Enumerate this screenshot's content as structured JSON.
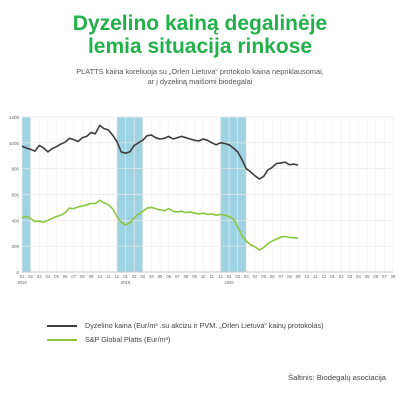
{
  "page": {
    "title_line1": "Dyzelino kainą degalinėje",
    "title_line2": "lemia situacija rinkose",
    "subtitle_line1": "PLATTS kaina koreliuoja su „Orlen Lietuva“ protokolo kaina nepriklausomai,",
    "subtitle_line2": "ar į dyzeliną maišomi biodegalai",
    "source": "Šaltinis: Biodegalų asociacija"
  },
  "chart_data": {
    "type": "line",
    "y_ticks": [
      0,
      200,
      400,
      600,
      800,
      1000,
      1200
    ],
    "ylim": [
      0,
      1200
    ],
    "x_month_labels": [
      "01",
      "02",
      "03",
      "04",
      "05",
      "06",
      "07",
      "08",
      "09",
      "10",
      "11",
      "12",
      "01",
      "02",
      "03",
      "04",
      "05",
      "06",
      "07",
      "08",
      "09",
      "10",
      "11",
      "12",
      "01",
      "02",
      "03",
      "04",
      "05",
      "06",
      "07",
      "08",
      "09",
      "10",
      "11",
      "12",
      "01",
      "02",
      "03",
      "04",
      "05",
      "06",
      "07",
      "08"
    ],
    "x_year_labels": [
      {
        "month_index": 0,
        "label": "2018"
      },
      {
        "month_index": 12,
        "label": "2019"
      },
      {
        "month_index": 24,
        "label": "2020"
      }
    ],
    "shaded_periods": [
      [
        0,
        1
      ],
      [
        11,
        14
      ],
      [
        23,
        26
      ]
    ],
    "shade_color": "#9fd3e2",
    "grid": true,
    "series": [
      {
        "name": "Dyzelino kaina (Eur/m³ .su akcizu ir PVM. „Orlen Lietuva“ kainų protokolas)",
        "color": "#3d3d3d",
        "points": [
          [
            0,
            975
          ],
          [
            0.5,
            960
          ],
          [
            1,
            950
          ],
          [
            1.5,
            935
          ],
          [
            2,
            980
          ],
          [
            2.5,
            960
          ],
          [
            3,
            930
          ],
          [
            3.5,
            955
          ],
          [
            4,
            970
          ],
          [
            4.5,
            990
          ],
          [
            5,
            1005
          ],
          [
            5.5,
            1035
          ],
          [
            6,
            1025
          ],
          [
            6.5,
            1010
          ],
          [
            7,
            1040
          ],
          [
            7.5,
            1050
          ],
          [
            8,
            1080
          ],
          [
            8.5,
            1070
          ],
          [
            9,
            1135
          ],
          [
            9.5,
            1110
          ],
          [
            10,
            1100
          ],
          [
            10.5,
            1060
          ],
          [
            11,
            1010
          ],
          [
            11.5,
            930
          ],
          [
            12,
            920
          ],
          [
            12.5,
            930
          ],
          [
            13,
            980
          ],
          [
            13.5,
            1000
          ],
          [
            14,
            1020
          ],
          [
            14.5,
            1055
          ],
          [
            15,
            1060
          ],
          [
            15.5,
            1040
          ],
          [
            16,
            1030
          ],
          [
            16.5,
            1035
          ],
          [
            17,
            1050
          ],
          [
            17.5,
            1030
          ],
          [
            18,
            1040
          ],
          [
            18.5,
            1050
          ],
          [
            19,
            1040
          ],
          [
            19.5,
            1030
          ],
          [
            20,
            1020
          ],
          [
            20.5,
            1015
          ],
          [
            21,
            1030
          ],
          [
            21.5,
            1020
          ],
          [
            22,
            1000
          ],
          [
            22.5,
            985
          ],
          [
            23,
            1000
          ],
          [
            23.5,
            995
          ],
          [
            24,
            985
          ],
          [
            24.5,
            960
          ],
          [
            25,
            930
          ],
          [
            25.5,
            870
          ],
          [
            26,
            800
          ],
          [
            26.5,
            775
          ],
          [
            27,
            745
          ],
          [
            27.5,
            720
          ],
          [
            28,
            740
          ],
          [
            28.5,
            790
          ],
          [
            29,
            810
          ],
          [
            29.5,
            840
          ],
          [
            30,
            845
          ],
          [
            30.5,
            850
          ],
          [
            31,
            830
          ],
          [
            31.5,
            835
          ],
          [
            32,
            828
          ]
        ]
      },
      {
        "name": "S&P Global Platts (Eur/m³)",
        "color": "#8cc63f",
        "points": [
          [
            0,
            420
          ],
          [
            0.5,
            430
          ],
          [
            1,
            415
          ],
          [
            1.5,
            390
          ],
          [
            2,
            395
          ],
          [
            2.5,
            385
          ],
          [
            3,
            400
          ],
          [
            3.5,
            415
          ],
          [
            4,
            430
          ],
          [
            4.5,
            440
          ],
          [
            5,
            460
          ],
          [
            5.5,
            495
          ],
          [
            6,
            490
          ],
          [
            6.5,
            505
          ],
          [
            7,
            510
          ],
          [
            7.5,
            520
          ],
          [
            8,
            530
          ],
          [
            8.5,
            530
          ],
          [
            9,
            555
          ],
          [
            9.5,
            535
          ],
          [
            10,
            520
          ],
          [
            10.5,
            490
          ],
          [
            11,
            430
          ],
          [
            11.5,
            385
          ],
          [
            12,
            365
          ],
          [
            12.5,
            380
          ],
          [
            13,
            420
          ],
          [
            13.5,
            450
          ],
          [
            14,
            470
          ],
          [
            14.5,
            495
          ],
          [
            15,
            500
          ],
          [
            15.5,
            490
          ],
          [
            16,
            480
          ],
          [
            16.5,
            475
          ],
          [
            17,
            490
          ],
          [
            17.5,
            470
          ],
          [
            18,
            465
          ],
          [
            18.5,
            470
          ],
          [
            19,
            460
          ],
          [
            19.5,
            465
          ],
          [
            20,
            455
          ],
          [
            20.5,
            450
          ],
          [
            21,
            455
          ],
          [
            21.5,
            445
          ],
          [
            22,
            450
          ],
          [
            22.5,
            440
          ],
          [
            23,
            445
          ],
          [
            23.5,
            440
          ],
          [
            24,
            430
          ],
          [
            24.5,
            410
          ],
          [
            25,
            350
          ],
          [
            25.5,
            280
          ],
          [
            26,
            240
          ],
          [
            26.5,
            210
          ],
          [
            27,
            195
          ],
          [
            27.5,
            170
          ],
          [
            28,
            190
          ],
          [
            28.5,
            220
          ],
          [
            29,
            240
          ],
          [
            29.5,
            255
          ],
          [
            30,
            270
          ],
          [
            30.5,
            275
          ],
          [
            31,
            268
          ],
          [
            31.5,
            265
          ],
          [
            32,
            262
          ]
        ]
      }
    ]
  }
}
